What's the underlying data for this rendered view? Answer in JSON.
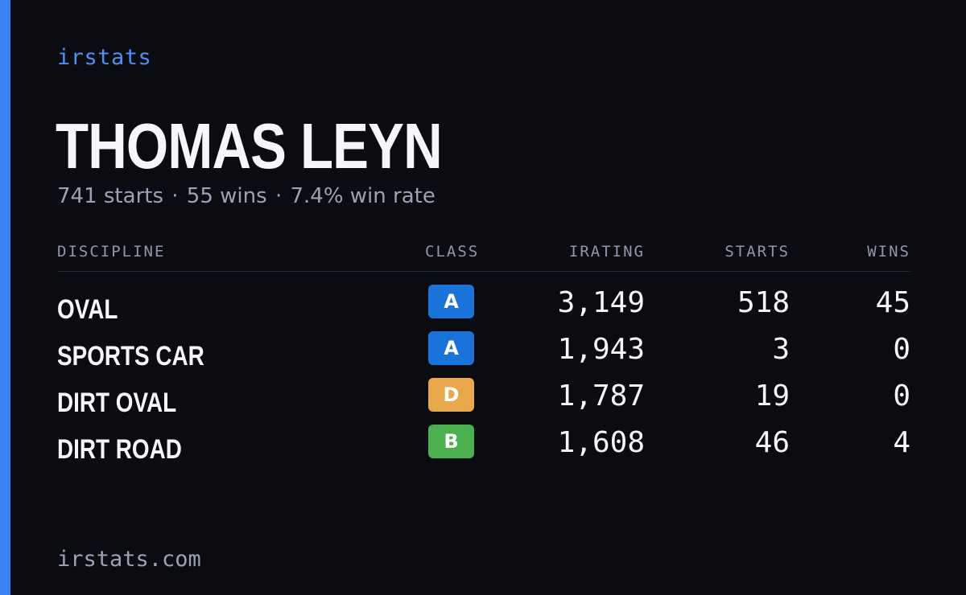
{
  "brand": "irstats",
  "player": {
    "name": "THOMAS LEYN",
    "summary": {
      "starts": "741 starts",
      "wins": "55 wins",
      "win_rate": "7.4% win rate",
      "separator": "·"
    }
  },
  "table": {
    "headers": {
      "discipline": "DISCIPLINE",
      "class": "CLASS",
      "irating": "IRATING",
      "starts": "STARTS",
      "wins": "WINS"
    },
    "rows": [
      {
        "discipline": "OVAL",
        "class": "A",
        "class_color": "#1a73d9",
        "irating": "3,149",
        "starts": "518",
        "wins": "45"
      },
      {
        "discipline": "SPORTS CAR",
        "class": "A",
        "class_color": "#1a73d9",
        "irating": "1,943",
        "starts": "3",
        "wins": "0"
      },
      {
        "discipline": "DIRT OVAL",
        "class": "D",
        "class_color": "#e9a84c",
        "irating": "1,787",
        "starts": "19",
        "wins": "0"
      },
      {
        "discipline": "DIRT ROAD",
        "class": "B",
        "class_color": "#4caf50",
        "irating": "1,608",
        "starts": "46",
        "wins": "4"
      }
    ]
  },
  "footer": "irstats.com",
  "colors": {
    "accent": "#3b82f6",
    "background": "#0a0c12"
  }
}
